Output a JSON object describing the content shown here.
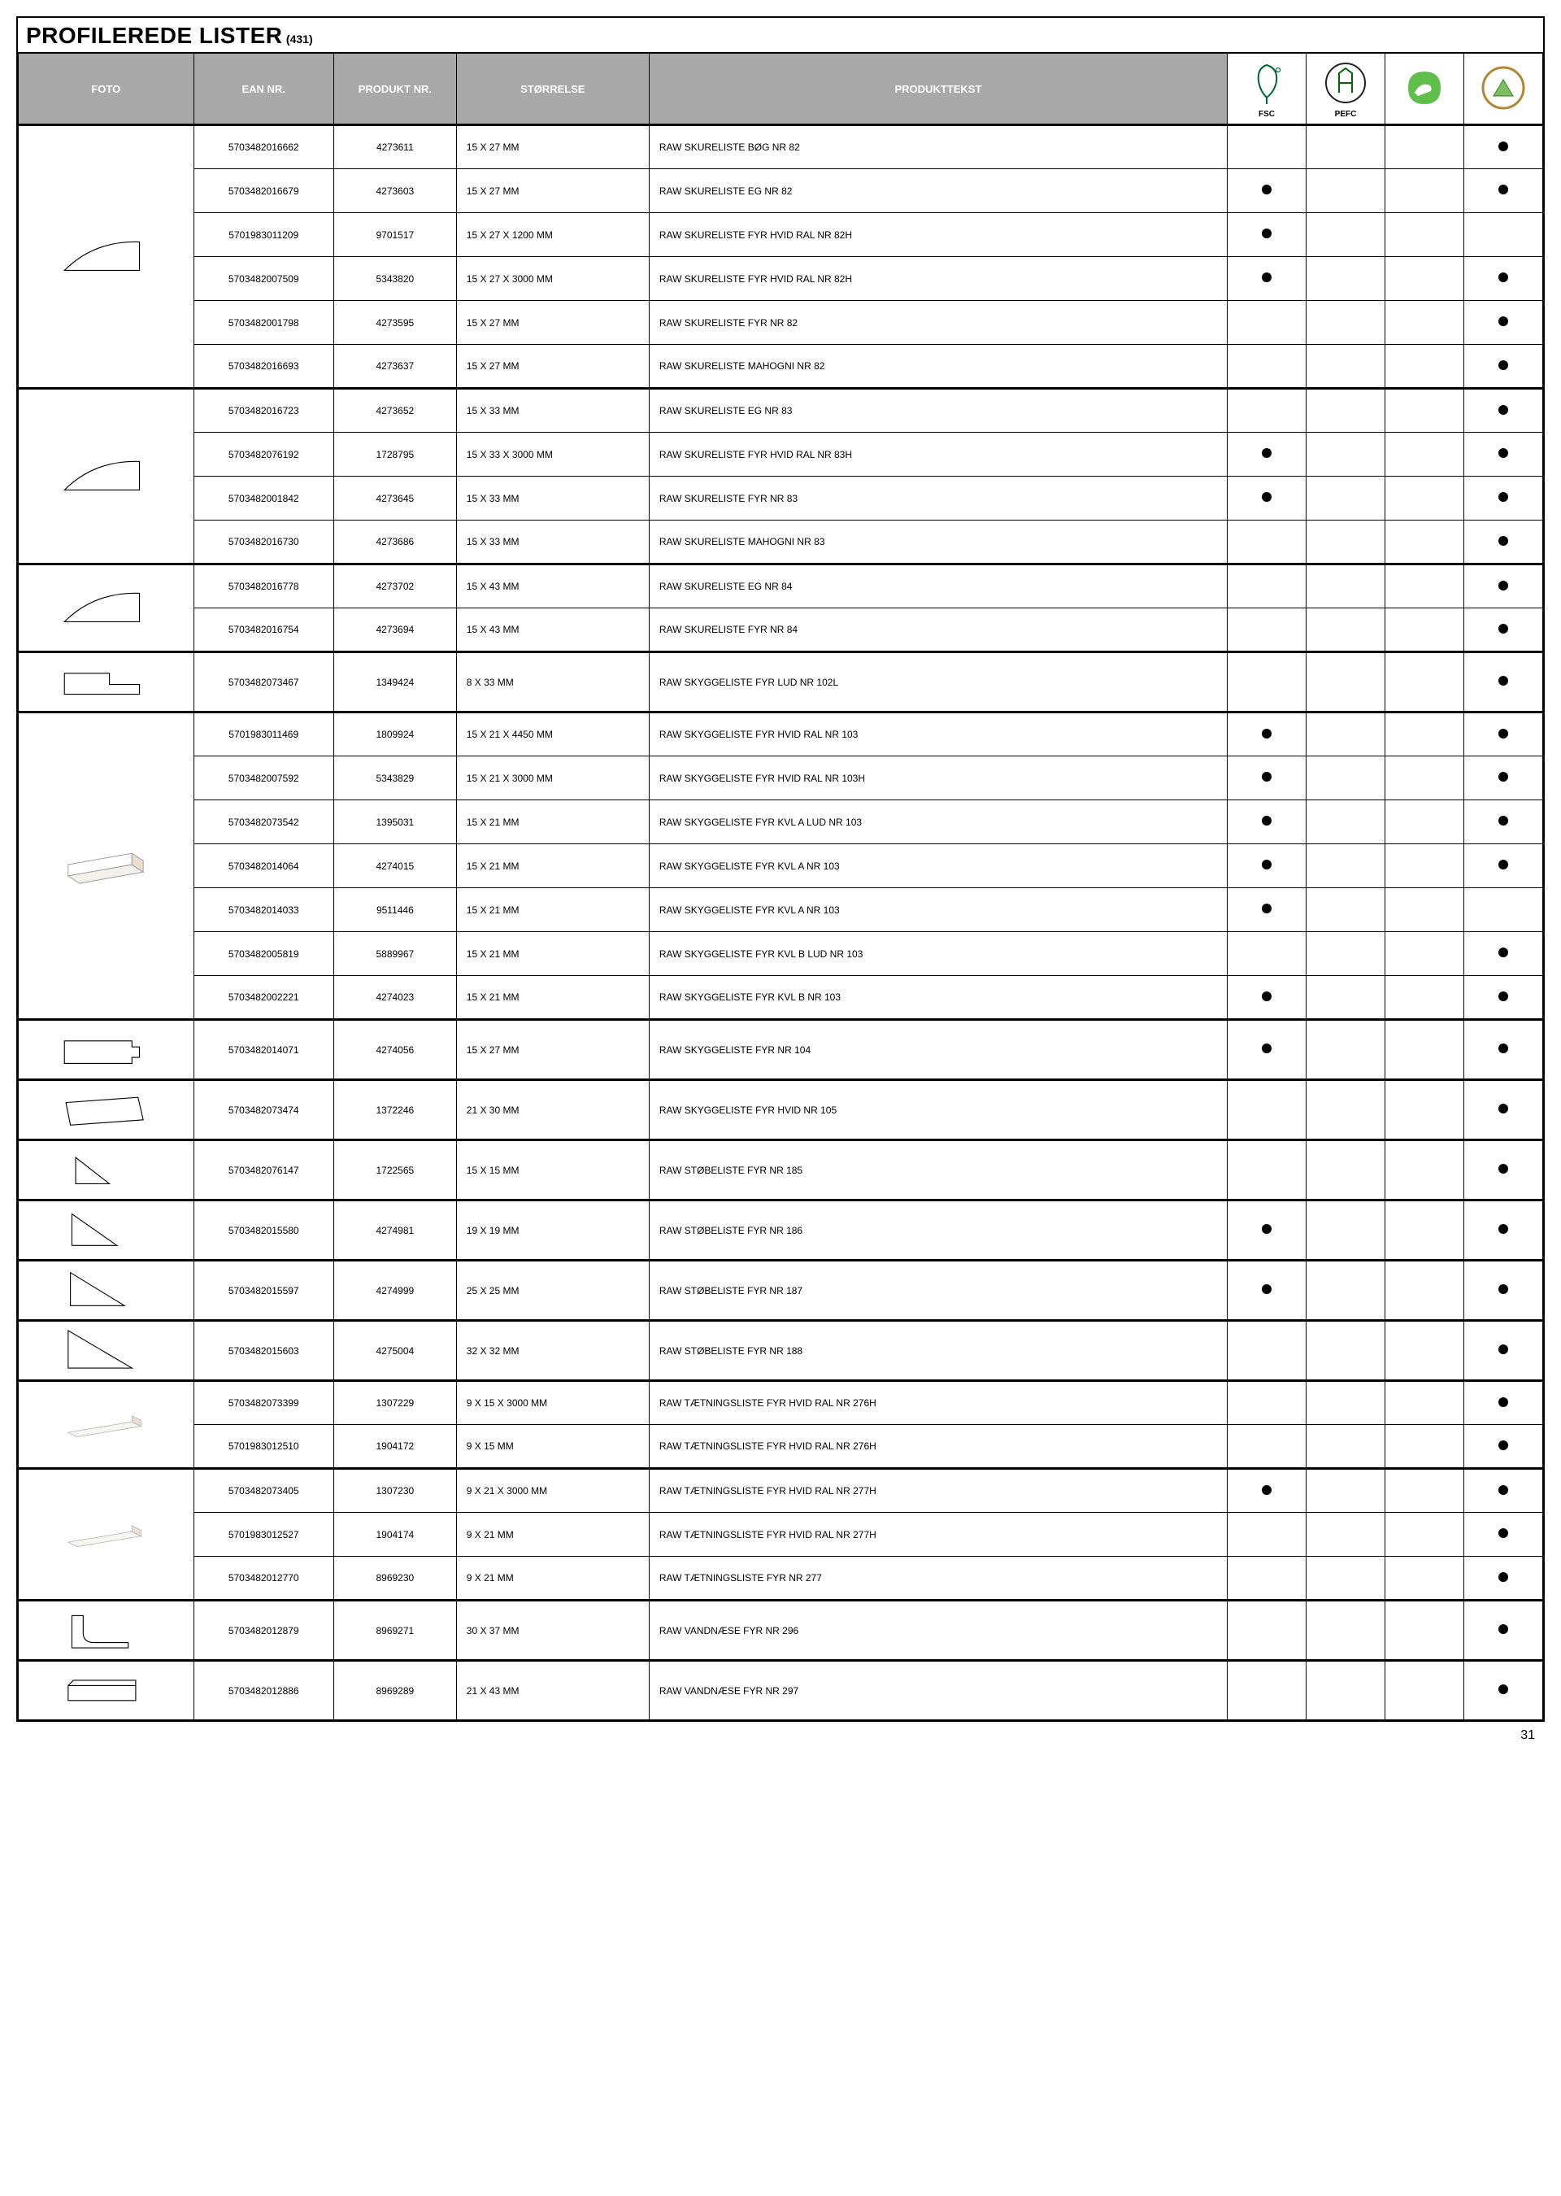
{
  "title": "PROFILEREDE LISTER",
  "count": "(431)",
  "page_number": "31",
  "headers": {
    "foto": "FOTO",
    "ean": "EAN NR.",
    "produkt": "PRODUKT NR.",
    "storrelse": "STØRRELSE",
    "tekst": "PRODUKTTEKST"
  },
  "cert_labels": {
    "fsc": "FSC",
    "pefc": "PEFC"
  },
  "groups": [
    {
      "foto_svg": "curve1",
      "rows": [
        {
          "ean": "5703482016662",
          "prod": "4273611",
          "size": "15 X 27 MM",
          "text": "RAW SKURELISTE BØG NR 82",
          "c": [
            0,
            0,
            0,
            1
          ]
        },
        {
          "ean": "5703482016679",
          "prod": "4273603",
          "size": "15 X 27 MM",
          "text": "RAW SKURELISTE EG NR 82",
          "c": [
            1,
            0,
            0,
            1
          ]
        },
        {
          "ean": "5701983011209",
          "prod": "9701517",
          "size": "15 X 27 X 1200 MM",
          "text": "RAW SKURELISTE FYR HVID RAL NR 82H",
          "c": [
            1,
            0,
            0,
            0
          ]
        },
        {
          "ean": "5703482007509",
          "prod": "5343820",
          "size": "15 X 27 X 3000 MM",
          "text": "RAW SKURELISTE FYR HVID RAL NR 82H",
          "c": [
            1,
            0,
            0,
            1
          ]
        },
        {
          "ean": "5703482001798",
          "prod": "4273595",
          "size": "15 X 27 MM",
          "text": "RAW SKURELISTE FYR NR 82",
          "c": [
            0,
            0,
            0,
            1
          ]
        },
        {
          "ean": "5703482016693",
          "prod": "4273637",
          "size": "15 X 27 MM",
          "text": "RAW SKURELISTE MAHOGNI NR 82",
          "c": [
            0,
            0,
            0,
            1
          ]
        }
      ]
    },
    {
      "foto_svg": "curve1",
      "rows": [
        {
          "ean": "5703482016723",
          "prod": "4273652",
          "size": "15 X 33 MM",
          "text": "RAW SKURELISTE EG NR 83",
          "c": [
            0,
            0,
            0,
            1
          ]
        },
        {
          "ean": "5703482076192",
          "prod": "1728795",
          "size": "15 X 33 X 3000 MM",
          "text": "RAW SKURELISTE FYR HVID RAL NR 83H",
          "c": [
            1,
            0,
            0,
            1
          ]
        },
        {
          "ean": "5703482001842",
          "prod": "4273645",
          "size": "15 X 33 MM",
          "text": "RAW SKURELISTE FYR NR 83",
          "c": [
            1,
            0,
            0,
            1
          ]
        },
        {
          "ean": "5703482016730",
          "prod": "4273686",
          "size": "15 X 33 MM",
          "text": "RAW SKURELISTE MAHOGNI NR 83",
          "c": [
            0,
            0,
            0,
            1
          ]
        }
      ]
    },
    {
      "foto_svg": "curve1",
      "rows": [
        {
          "ean": "5703482016778",
          "prod": "4273702",
          "size": "15 X 43 MM",
          "text": "RAW SKURELISTE EG NR 84",
          "c": [
            0,
            0,
            0,
            1
          ]
        },
        {
          "ean": "5703482016754",
          "prod": "4273694",
          "size": "15 X 43 MM",
          "text": "RAW SKURELISTE FYR NR 84",
          "c": [
            0,
            0,
            0,
            1
          ]
        }
      ]
    },
    {
      "foto_svg": "step1",
      "rows": [
        {
          "ean": "5703482073467",
          "prod": "1349424",
          "size": "8 X 33 MM",
          "text": "RAW SKYGGELISTE FYR LUD NR 102L",
          "c": [
            0,
            0,
            0,
            1
          ]
        }
      ]
    },
    {
      "foto_svg": "bar3d",
      "rows": [
        {
          "ean": "5701983011469",
          "prod": "1809924",
          "size": "15 X 21 X 4450 MM",
          "text": "RAW SKYGGELISTE FYR HVID RAL NR 103",
          "c": [
            1,
            0,
            0,
            1
          ]
        },
        {
          "ean": "5703482007592",
          "prod": "5343829",
          "size": "15 X 21 X 3000 MM",
          "text": "RAW SKYGGELISTE FYR HVID RAL NR 103H",
          "c": [
            1,
            0,
            0,
            1
          ]
        },
        {
          "ean": "5703482073542",
          "prod": "1395031",
          "size": "15 X 21 MM",
          "text": "RAW SKYGGELISTE FYR KVL A LUD NR 103",
          "c": [
            1,
            0,
            0,
            1
          ]
        },
        {
          "ean": "5703482014064",
          "prod": "4274015",
          "size": "15 X 21 MM",
          "text": "RAW SKYGGELISTE FYR KVL A NR 103",
          "c": [
            1,
            0,
            0,
            1
          ]
        },
        {
          "ean": "5703482014033",
          "prod": "9511446",
          "size": "15 X 21 MM",
          "text": "RAW SKYGGELISTE FYR KVL A NR 103",
          "c": [
            1,
            0,
            0,
            0
          ]
        },
        {
          "ean": "5703482005819",
          "prod": "5889967",
          "size": "15 X 21 MM",
          "text": "RAW SKYGGELISTE FYR KVL B LUD NR 103",
          "c": [
            0,
            0,
            0,
            1
          ]
        },
        {
          "ean": "5703482002221",
          "prod": "4274023",
          "size": "15 X 21 MM",
          "text": "RAW SKYGGELISTE FYR KVL B NR 103",
          "c": [
            1,
            0,
            0,
            1
          ]
        }
      ]
    },
    {
      "foto_svg": "rect_notch",
      "rows": [
        {
          "ean": "5703482014071",
          "prod": "4274056",
          "size": "15 X 27 MM",
          "text": "RAW SKYGGELISTE FYR NR 104",
          "c": [
            1,
            0,
            0,
            1
          ]
        }
      ]
    },
    {
      "foto_svg": "quad",
      "rows": [
        {
          "ean": "5703482073474",
          "prod": "1372246",
          "size": "21 X 30 MM",
          "text": "RAW SKYGGELISTE FYR HVID NR 105",
          "c": [
            0,
            0,
            0,
            1
          ]
        }
      ]
    },
    {
      "foto_svg": "tri_small",
      "rows": [
        {
          "ean": "5703482076147",
          "prod": "1722565",
          "size": "15 X 15 MM",
          "text": "RAW STØBELISTE FYR NR 185",
          "c": [
            0,
            0,
            0,
            1
          ]
        }
      ]
    },
    {
      "foto_svg": "tri_med",
      "rows": [
        {
          "ean": "5703482015580",
          "prod": "4274981",
          "size": "19 X 19 MM",
          "text": "RAW STØBELISTE FYR NR 186",
          "c": [
            1,
            0,
            0,
            1
          ]
        }
      ]
    },
    {
      "foto_svg": "tri_lg",
      "rows": [
        {
          "ean": "5703482015597",
          "prod": "4274999",
          "size": "25 X 25 MM",
          "text": "RAW STØBELISTE FYR NR 187",
          "c": [
            1,
            0,
            0,
            1
          ]
        }
      ]
    },
    {
      "foto_svg": "tri_xl",
      "rows": [
        {
          "ean": "5703482015603",
          "prod": "4275004",
          "size": "32 X 32 MM",
          "text": "RAW STØBELISTE FYR NR 188",
          "c": [
            0,
            0,
            0,
            1
          ]
        }
      ]
    },
    {
      "foto_svg": "bar_slim",
      "rows": [
        {
          "ean": "5703482073399",
          "prod": "1307229",
          "size": "9 X 15 X 3000 MM",
          "text": "RAW TÆTNINGSLISTE FYR HVID RAL NR 276H",
          "c": [
            0,
            0,
            0,
            1
          ]
        },
        {
          "ean": "5701983012510",
          "prod": "1904172",
          "size": "9 X 15 MM",
          "text": "RAW TÆTNINGSLISTE FYR HVID RAL NR 276H",
          "c": [
            0,
            0,
            0,
            1
          ]
        }
      ]
    },
    {
      "foto_svg": "bar_slim",
      "rows": [
        {
          "ean": "5703482073405",
          "prod": "1307230",
          "size": "9 X 21 X 3000 MM",
          "text": "RAW TÆTNINGSLISTE FYR HVID RAL NR 277H",
          "c": [
            1,
            0,
            0,
            1
          ]
        },
        {
          "ean": "5701983012527",
          "prod": "1904174",
          "size": "9 X 21 MM",
          "text": "RAW TÆTNINGSLISTE FYR HVID RAL NR 277H",
          "c": [
            0,
            0,
            0,
            1
          ]
        },
        {
          "ean": "5703482012770",
          "prod": "8969230",
          "size": "9 X 21 MM",
          "text": "RAW TÆTNINGSLISTE FYR NR 277",
          "c": [
            0,
            0,
            0,
            1
          ]
        }
      ]
    },
    {
      "foto_svg": "profile_l",
      "rows": [
        {
          "ean": "5703482012879",
          "prod": "8969271",
          "size": "30 X 37 MM",
          "text": "RAW VANDNÆSE FYR NR 296",
          "c": [
            0,
            0,
            0,
            1
          ]
        }
      ]
    },
    {
      "foto_svg": "profile_flat",
      "rows": [
        {
          "ean": "5703482012886",
          "prod": "8969289",
          "size": "21 X 43 MM",
          "text": "RAW VANDNÆSE FYR NR 297",
          "c": [
            0,
            0,
            0,
            1
          ]
        }
      ]
    }
  ]
}
